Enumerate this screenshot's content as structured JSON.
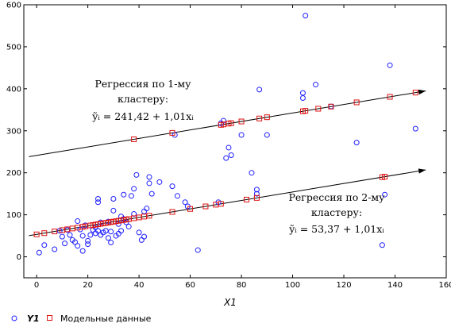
{
  "chart_data": {
    "type": "scatter",
    "xlabel": "X1",
    "xlim": [
      -5,
      160
    ],
    "ylim": [
      -50,
      600
    ],
    "xticks": [
      "0",
      "20",
      "40",
      "60",
      "80",
      "100",
      "120",
      "140",
      "160"
    ],
    "yticks": [
      "0",
      "100",
      "200",
      "300",
      "400",
      "500",
      "600"
    ],
    "grid": false,
    "legend_position": "bottom-left",
    "colors": {
      "y1": "#2020ff",
      "model": "#dd1111",
      "line": "#000000"
    },
    "series": [
      {
        "name": "Y1",
        "marker": "circle",
        "points": [
          [
            1,
            10
          ],
          [
            3,
            28
          ],
          [
            7,
            18
          ],
          [
            9,
            62
          ],
          [
            10,
            48
          ],
          [
            11,
            32
          ],
          [
            12,
            64
          ],
          [
            13,
            52
          ],
          [
            14,
            40
          ],
          [
            15,
            35
          ],
          [
            16,
            85
          ],
          [
            16,
            26
          ],
          [
            17,
            65
          ],
          [
            18,
            14
          ],
          [
            18,
            50
          ],
          [
            19,
            75
          ],
          [
            20,
            38
          ],
          [
            20,
            30
          ],
          [
            21,
            52
          ],
          [
            22,
            64
          ],
          [
            23,
            56
          ],
          [
            23,
            70
          ],
          [
            24,
            62
          ],
          [
            24,
            130
          ],
          [
            24,
            138
          ],
          [
            25,
            52
          ],
          [
            25,
            82
          ],
          [
            26,
            58
          ],
          [
            27,
            62
          ],
          [
            28,
            84
          ],
          [
            28,
            45
          ],
          [
            29,
            60
          ],
          [
            29,
            34
          ],
          [
            30,
            110
          ],
          [
            30,
            138
          ],
          [
            31,
            50
          ],
          [
            32,
            55
          ],
          [
            32,
            78
          ],
          [
            33,
            62
          ],
          [
            33,
            96
          ],
          [
            34,
            90
          ],
          [
            34,
            148
          ],
          [
            35,
            82
          ],
          [
            36,
            72
          ],
          [
            37,
            145
          ],
          [
            38,
            102
          ],
          [
            38,
            162
          ],
          [
            39,
            195
          ],
          [
            40,
            58
          ],
          [
            41,
            40
          ],
          [
            42,
            48
          ],
          [
            42,
            108
          ],
          [
            43,
            115
          ],
          [
            44,
            175
          ],
          [
            44,
            190
          ],
          [
            45,
            150
          ],
          [
            48,
            178
          ],
          [
            53,
            168
          ],
          [
            54,
            290
          ],
          [
            55,
            145
          ],
          [
            58,
            130
          ],
          [
            59,
            120
          ],
          [
            63,
            16
          ],
          [
            71,
            130
          ],
          [
            72,
            318
          ],
          [
            73,
            324
          ],
          [
            74,
            235
          ],
          [
            75,
            260
          ],
          [
            76,
            242
          ],
          [
            80,
            290
          ],
          [
            84,
            200
          ],
          [
            86,
            150
          ],
          [
            86,
            160
          ],
          [
            87,
            398
          ],
          [
            90,
            290
          ],
          [
            104,
            378
          ],
          [
            104,
            390
          ],
          [
            105,
            574
          ],
          [
            109,
            410
          ],
          [
            115,
            358
          ],
          [
            125,
            272
          ],
          [
            135,
            28
          ],
          [
            136,
            148
          ],
          [
            138,
            456
          ],
          [
            148,
            305
          ]
        ]
      },
      {
        "name": "Модельные данные",
        "marker": "square",
        "points": [
          [
            0,
            53.4
          ],
          [
            3,
            56.4
          ],
          [
            7,
            60.4
          ],
          [
            10,
            63.5
          ],
          [
            12,
            65.5
          ],
          [
            14,
            67.5
          ],
          [
            16,
            69.5
          ],
          [
            18,
            71.5
          ],
          [
            19,
            72.6
          ],
          [
            21,
            74.6
          ],
          [
            22,
            75.6
          ],
          [
            23,
            76.6
          ],
          [
            24,
            77.6
          ],
          [
            25,
            78.6
          ],
          [
            26,
            79.6
          ],
          [
            27,
            80.6
          ],
          [
            28,
            81.6
          ],
          [
            29,
            82.7
          ],
          [
            30,
            83.7
          ],
          [
            31,
            84.7
          ],
          [
            32,
            85.7
          ],
          [
            33,
            86.7
          ],
          [
            34,
            87.7
          ],
          [
            35,
            88.7
          ],
          [
            36,
            89.7
          ],
          [
            38,
            91.8
          ],
          [
            40,
            93.8
          ],
          [
            42,
            95.8
          ],
          [
            44,
            97.8
          ],
          [
            53,
            106.9
          ],
          [
            60,
            114.0
          ],
          [
            66,
            120.0
          ],
          [
            70,
            124.1
          ],
          [
            72,
            126.1
          ],
          [
            82,
            136.2
          ],
          [
            86,
            140.2
          ],
          [
            135,
            189.7
          ],
          [
            136,
            190.7
          ],
          [
            38,
            279.8
          ],
          [
            53,
            295.0
          ],
          [
            72,
            314.1
          ],
          [
            73,
            315.2
          ],
          [
            75,
            317.2
          ],
          [
            76,
            318.2
          ],
          [
            80,
            322.2
          ],
          [
            87,
            329.3
          ],
          [
            90,
            332.3
          ],
          [
            104,
            346.5
          ],
          [
            105,
            347.5
          ],
          [
            110,
            352.5
          ],
          [
            115,
            357.6
          ],
          [
            125,
            367.7
          ],
          [
            138,
            380.8
          ],
          [
            148,
            390.9
          ]
        ]
      }
    ],
    "regression_lines": [
      {
        "intercept": 241.42,
        "slope": 1.01,
        "x_range": [
          -3,
          152
        ]
      },
      {
        "intercept": 53.37,
        "slope": 1.01,
        "x_range": [
          -3,
          152
        ]
      }
    ],
    "annotations": [
      {
        "line1": "Регрессия по 1-му",
        "line2": "кластеру:",
        "formula": "ỹᵢ = 241,42 + 1,01xᵢ"
      },
      {
        "line1": "Регрессия по 2-му",
        "line2": "кластеру:",
        "formula": "ỹᵢ = 53,37 + 1,01xᵢ"
      }
    ],
    "legend": [
      {
        "label": "Y1",
        "marker": "circle"
      },
      {
        "label": "Модельные данные",
        "marker": "square"
      }
    ]
  }
}
